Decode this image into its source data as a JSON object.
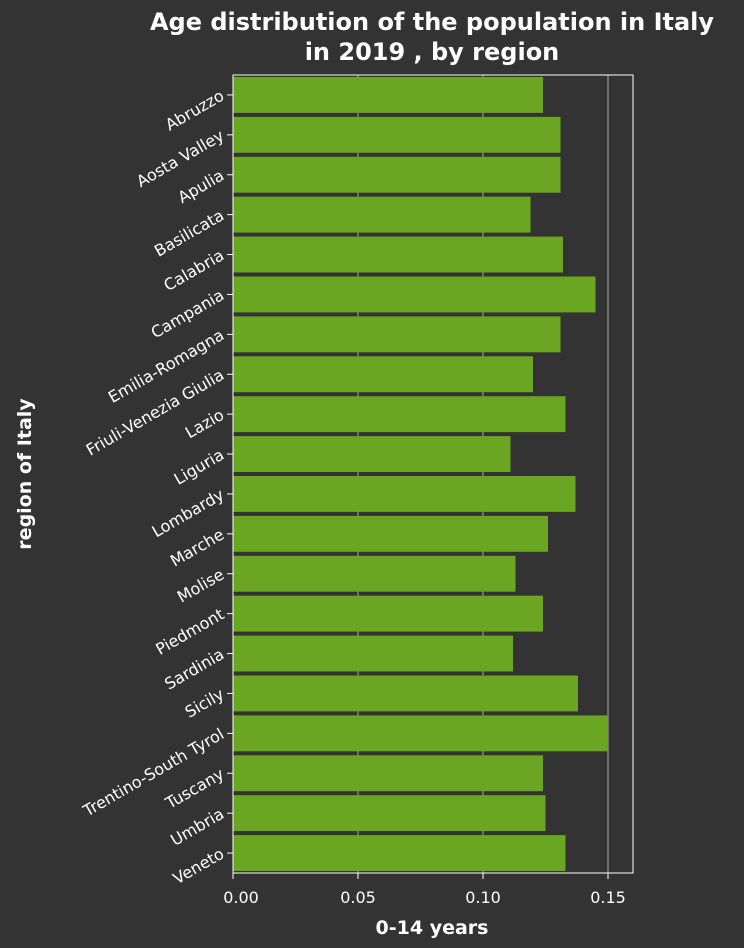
{
  "chart_data": {
    "type": "bar",
    "orientation": "horizontal",
    "title_lines": [
      "Age distribution of the population in Italy",
      "in 2019 , by region"
    ],
    "xlabel": "0-14 years",
    "ylabel": "region of Italy",
    "xlim": [
      0,
      0.16
    ],
    "xticks": [
      0.0,
      0.05,
      0.1,
      0.15
    ],
    "xtick_labels": [
      "0.00",
      "0.05",
      "0.10",
      "0.15"
    ],
    "grid": "vertical",
    "categories": [
      "Abruzzo",
      "Aosta Valley",
      "Apulia",
      "Basilicata",
      "Calabria",
      "Campania",
      "Emilia-Romagna",
      "Friuli-Venezia Giulia",
      "Lazio",
      "Liguria",
      "Lombardy",
      "Marche",
      "Molise",
      "Piedmont",
      "Sardinia",
      "Sicily",
      "Trentino-South Tyrol",
      "Tuscany",
      "Umbria",
      "Veneto"
    ],
    "values": [
      0.124,
      0.131,
      0.131,
      0.119,
      0.132,
      0.145,
      0.131,
      0.12,
      0.133,
      0.111,
      0.137,
      0.126,
      0.113,
      0.124,
      0.112,
      0.138,
      0.15,
      0.124,
      0.125,
      0.133
    ],
    "bar_color": "#6aa621",
    "background_color": "#333333",
    "text_color": "#ffffff"
  }
}
